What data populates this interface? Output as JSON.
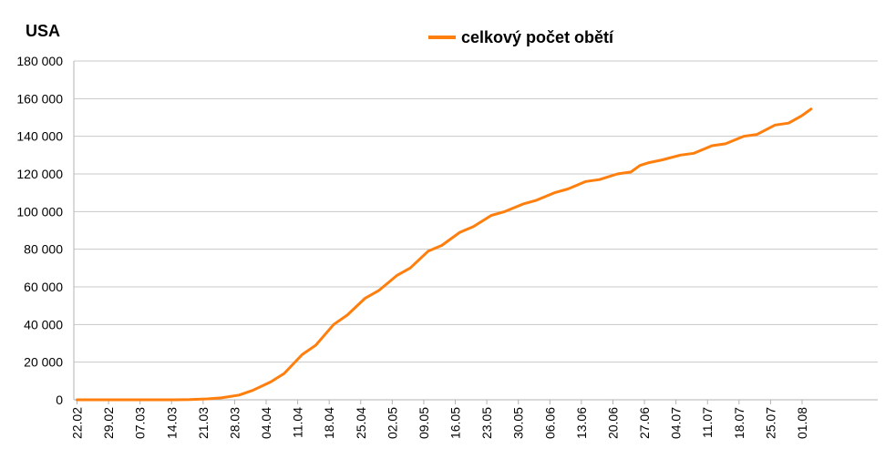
{
  "chart_data": {
    "type": "line",
    "title": "USA",
    "legend": {
      "placement": "top-center"
    },
    "series": [
      {
        "name": "celkový počet obětí",
        "color": "#ff7f0e",
        "x": [
          "22.02",
          "01.03",
          "08.03",
          "15.03",
          "18.03",
          "22.03",
          "25.03",
          "29.03",
          "01.04",
          "05.04",
          "08.04",
          "12.04",
          "15.04",
          "19.04",
          "22.04",
          "26.04",
          "29.04",
          "03.05",
          "06.05",
          "10.05",
          "13.05",
          "17.05",
          "20.05",
          "24.05",
          "27.05",
          "31.05",
          "03.06",
          "07.06",
          "10.06",
          "14.06",
          "17.06",
          "21.06",
          "24.06",
          "26.06",
          "28.06",
          "01.07",
          "05.07",
          "08.07",
          "12.07",
          "15.07",
          "19.07",
          "22.07",
          "26.07",
          "29.07",
          "01.08",
          "03.08"
        ],
        "values": [
          0,
          0,
          0,
          0,
          100,
          500,
          1000,
          2500,
          5000,
          9500,
          14000,
          24000,
          29000,
          40000,
          45000,
          54000,
          58000,
          66000,
          70000,
          79000,
          82000,
          89000,
          92000,
          98000,
          100000,
          104000,
          106000,
          110000,
          112000,
          116000,
          117000,
          120000,
          121000,
          124500,
          126000,
          127500,
          130000,
          131000,
          135000,
          136000,
          140000,
          141000,
          146000,
          147000,
          151000,
          154500
        ]
      }
    ],
    "x_ticks": [
      "22.02",
      "29.02",
      "07.03",
      "14.03",
      "21.03",
      "28.03",
      "04.04",
      "11.04",
      "18.04",
      "25.04",
      "02.05",
      "09.05",
      "16.05",
      "23.05",
      "30.05",
      "06.06",
      "13.06",
      "20.06",
      "27.06",
      "04.07",
      "11.07",
      "18.07",
      "25.07",
      "01.08"
    ],
    "y_ticks": [
      0,
      20000,
      40000,
      60000,
      80000,
      100000,
      120000,
      140000,
      160000,
      180000
    ],
    "ylim": [
      0,
      180000
    ],
    "xlabel": "",
    "ylabel": "",
    "grid": true
  }
}
